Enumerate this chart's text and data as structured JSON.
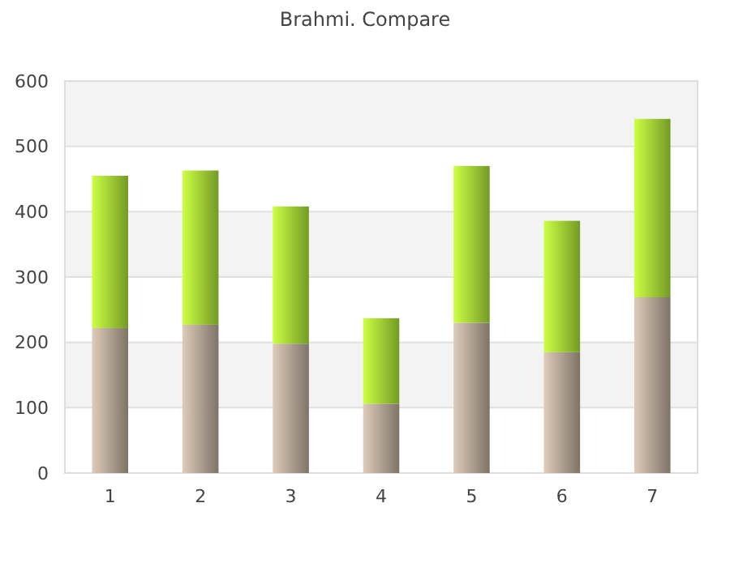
{
  "chart_data": {
    "type": "bar",
    "title": "Brahmi. Compare",
    "stacked": true,
    "categories": [
      "1",
      "2",
      "3",
      "4",
      "5",
      "6",
      "7"
    ],
    "series": [
      {
        "color": "#a8998a",
        "values": [
          222,
          227,
          198,
          106,
          230,
          185,
          269
        ]
      },
      {
        "color": "#9acd32",
        "values": [
          233,
          236,
          210,
          131,
          240,
          201,
          273
        ]
      }
    ],
    "ylim": [
      0,
      600
    ],
    "yticks": [
      0,
      100,
      200,
      300,
      400,
      500,
      600
    ],
    "grid": true
  }
}
